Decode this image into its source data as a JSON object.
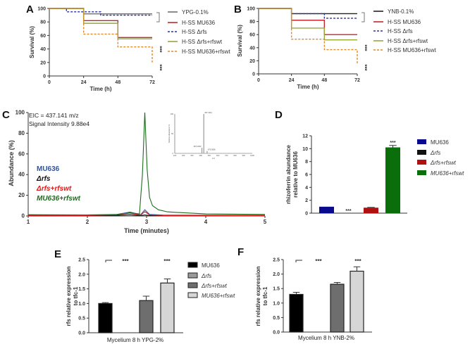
{
  "panel_labels": {
    "A": "A",
    "B": "B",
    "C": "C",
    "D": "D",
    "E": "E",
    "F": "F"
  },
  "chart_data": [
    {
      "panel": "A",
      "type": "line",
      "subtype": "kaplan-meier-step",
      "xlabel": "Time (h)",
      "ylabel": "Survival (%)",
      "xlim": [
        0,
        72
      ],
      "ylim": [
        0,
        100
      ],
      "xticks": [
        "0",
        "24",
        "48",
        "72"
      ],
      "yticks": [
        "0",
        "20",
        "40",
        "60",
        "80",
        "100"
      ],
      "series": [
        {
          "name": "YPG-0.1%",
          "color": "#707070",
          "dashed": false,
          "x": [
            0,
            24,
            72
          ],
          "y": [
            100,
            92,
            92
          ]
        },
        {
          "name": "H-SS MU636",
          "color": "#c0282d",
          "dashed": false,
          "x": [
            0,
            24,
            48,
            72
          ],
          "y": [
            100,
            82,
            57,
            57
          ]
        },
        {
          "name": "H-SS Δrfs",
          "color": "#2b2f9e",
          "dashed": true,
          "x": [
            0,
            12,
            36,
            72
          ],
          "y": [
            100,
            95,
            90,
            90
          ]
        },
        {
          "name": "H-SS Δrfs+rfswt",
          "color": "#9aa53a",
          "dashed": false,
          "x": [
            0,
            24,
            48,
            72
          ],
          "y": [
            100,
            78,
            55,
            55
          ]
        },
        {
          "name": "H-SS MU636+rfswt",
          "color": "#e08a2a",
          "dashed": true,
          "x": [
            0,
            24,
            48,
            72
          ],
          "y": [
            100,
            62,
            43,
            20
          ]
        }
      ],
      "significance": [
        "***",
        "***"
      ]
    },
    {
      "panel": "B",
      "type": "line",
      "subtype": "kaplan-meier-step",
      "xlabel": "Time (h)",
      "ylabel": "Survival (%)",
      "xlim": [
        0,
        72
      ],
      "ylim": [
        0,
        100
      ],
      "xticks": [
        "0",
        "24",
        "48",
        "72"
      ],
      "yticks": [
        "0",
        "20",
        "40",
        "60",
        "80",
        "100"
      ],
      "series": [
        {
          "name": "YNB-0.1%",
          "color": "#222222",
          "dashed": false,
          "x": [
            0,
            24,
            72
          ],
          "y": [
            100,
            92,
            92
          ]
        },
        {
          "name": "H-SS MU636",
          "color": "#c0282d",
          "dashed": false,
          "x": [
            0,
            24,
            48,
            72
          ],
          "y": [
            100,
            82,
            60,
            60
          ]
        },
        {
          "name": "H-SS Δrfs",
          "color": "#2b2f9e",
          "dashed": true,
          "x": [
            0,
            24,
            48,
            72
          ],
          "y": [
            100,
            92,
            85,
            85
          ]
        },
        {
          "name": "H-SS Δrfs+rfswt",
          "color": "#9aa53a",
          "dashed": false,
          "x": [
            0,
            24,
            48,
            72
          ],
          "y": [
            100,
            70,
            52,
            52
          ]
        },
        {
          "name": "H-SS MU636+rfswt",
          "color": "#e08a2a",
          "dashed": true,
          "x": [
            0,
            24,
            48,
            72
          ],
          "y": [
            100,
            53,
            37,
            15
          ]
        }
      ],
      "significance": [
        "***",
        "***"
      ]
    },
    {
      "panel": "C",
      "type": "line",
      "annotation": [
        "EIC = 437.141 m/z",
        "Signal Intensity 9.88e4"
      ],
      "xlabel": "Time (minutes)",
      "ylabel": "Abundance (%)",
      "xlim": [
        1,
        5
      ],
      "ylim": [
        0,
        100
      ],
      "xticks": [
        "1",
        "2",
        "3",
        "4",
        "5"
      ],
      "yticks": [
        "0",
        "20",
        "40",
        "60",
        "80",
        "100"
      ],
      "series": [
        {
          "name": "MU636",
          "color": "#2f55a4",
          "x": [
            1,
            2,
            2.5,
            2.72,
            2.9,
            2.97,
            3.05,
            3.3,
            5
          ],
          "y": [
            0.8,
            0.6,
            1.5,
            3.8,
            1.2,
            6,
            1.5,
            0.8,
            0.6
          ]
        },
        {
          "name": "Δrfs",
          "color": "#111111",
          "x": [
            1,
            2,
            2.5,
            2.72,
            2.9,
            2.97,
            3.05,
            5
          ],
          "y": [
            0.3,
            0.3,
            0.6,
            1.2,
            0.4,
            1.0,
            0.4,
            0.3
          ]
        },
        {
          "name": "Δrfs+rfswt",
          "color": "#e01818",
          "x": [
            1,
            2,
            2.5,
            2.72,
            2.9,
            2.97,
            3.05,
            3.3,
            5
          ],
          "y": [
            0.5,
            0.4,
            1.2,
            2.8,
            0.8,
            4.2,
            1.0,
            0.4,
            0.3
          ]
        },
        {
          "name": "MU636+rfswt",
          "color": "#1e6b1e",
          "x": [
            1,
            2,
            2.5,
            2.72,
            2.88,
            2.93,
            2.97,
            3.01,
            3.05,
            3.1,
            3.2,
            3.35,
            3.5,
            4,
            5
          ],
          "y": [
            1.2,
            1.0,
            1.5,
            3,
            2,
            40,
            100,
            45,
            18,
            10,
            6,
            4,
            3.5,
            2,
            1.5
          ]
        }
      ],
      "inset": {
        "type": "bar",
        "xlabel": "m/z",
        "ylabel": "Relative abundance %",
        "xticks": [
          "100",
          "200",
          "300",
          "400",
          "500",
          "600",
          "700",
          "800",
          "900",
          "1000"
        ],
        "yticks": [
          "0",
          "50",
          "100"
        ],
        "peaks": [
          {
            "mz": 437.141,
            "intensity": 100,
            "label": "437.1411"
          },
          {
            "mz": 415.132,
            "intensity": 14,
            "label": "415.1322"
          },
          {
            "mz": 475.566,
            "intensity": 6,
            "label": "475.5656"
          }
        ]
      }
    },
    {
      "panel": "D",
      "type": "bar",
      "ylabel": [
        "rhizoferrin abundance",
        "relative to MU636"
      ],
      "ylim": [
        0,
        12
      ],
      "yticks": [
        "0",
        "2",
        "4",
        "6",
        "8",
        "10",
        "12"
      ],
      "categories": [
        "MU636",
        "Δrfs",
        "Δrfs+rfswt",
        "MU636+rfswt"
      ],
      "values": [
        1.0,
        0,
        0.85,
        10.2
      ],
      "errors": [
        0,
        0,
        0.05,
        0.3
      ],
      "colors": [
        "#0a0a8c",
        "#111111",
        "#b01010",
        "#0a6e0a"
      ],
      "significance": [
        "",
        "***",
        "",
        "***"
      ]
    },
    {
      "panel": "E",
      "type": "bar",
      "xlabel": "Mycelium 8 h YPG-2%",
      "ylabel": [
        "rfs relative expression",
        "to tfc-1"
      ],
      "ylim": [
        0,
        2.5
      ],
      "yticks": [
        "0.0",
        "0.5",
        "1.0",
        "1.5",
        "2.0",
        "2.5"
      ],
      "categories": [
        "MU636",
        "Δrfs",
        "Δrfs+rfswt",
        "MU636+rfswt"
      ],
      "values": [
        1.0,
        0,
        1.1,
        1.7
      ],
      "errors": [
        0.03,
        0,
        0.15,
        0.14
      ],
      "colors": [
        "#000000",
        "#9a9a9a",
        "#6e6e6e",
        "#d6d6d6"
      ],
      "significance": [
        "***",
        "***"
      ]
    },
    {
      "panel": "F",
      "type": "bar",
      "xlabel": "Mycelium 8 h YNB-2%",
      "ylabel": [
        "rfs relative expression",
        "to tfc-1"
      ],
      "ylim": [
        0,
        2.5
      ],
      "yticks": [
        "0.0",
        "0.5",
        "1.0",
        "1.5",
        "2.0",
        "2.5"
      ],
      "categories": [
        "MU636",
        "Δrfs",
        "Δrfs+rfswt",
        "MU636+rfswt"
      ],
      "values": [
        1.3,
        0,
        1.65,
        2.1
      ],
      "errors": [
        0.07,
        0,
        0.06,
        0.15
      ],
      "colors": [
        "#000000",
        "#9a9a9a",
        "#6e6e6e",
        "#d6d6d6"
      ],
      "significance": [
        "***",
        "***"
      ]
    }
  ]
}
